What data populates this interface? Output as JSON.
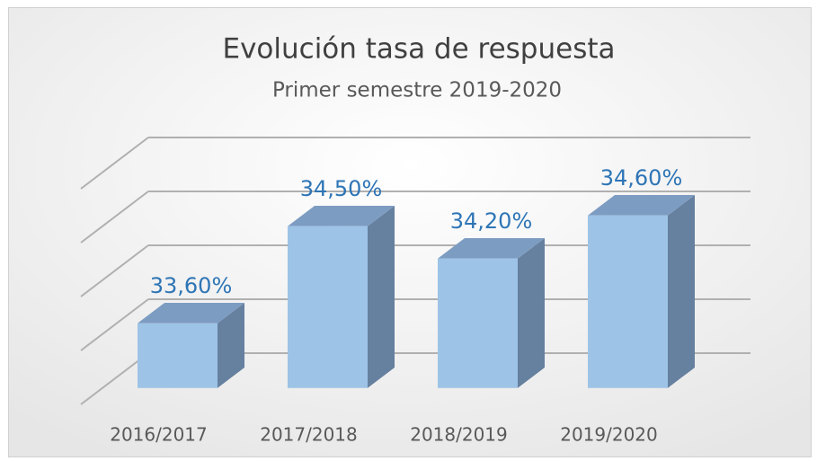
{
  "chart_data": {
    "type": "bar",
    "title": "Evolución tasa de respuesta",
    "subtitle": "Primer semestre 2019-2020",
    "categories": [
      "2016/2017",
      "2017/2018",
      "2018/2019",
      "2019/2020"
    ],
    "values": [
      33.6,
      34.5,
      34.2,
      34.6
    ],
    "value_labels": [
      "33,60%",
      "34,50%",
      "34,20%",
      "34,60%"
    ],
    "color": "#9dc3e6",
    "ylim": [
      33,
      35
    ],
    "yticks": [
      33,
      33.5,
      34,
      34.5,
      35
    ],
    "grid": true
  }
}
